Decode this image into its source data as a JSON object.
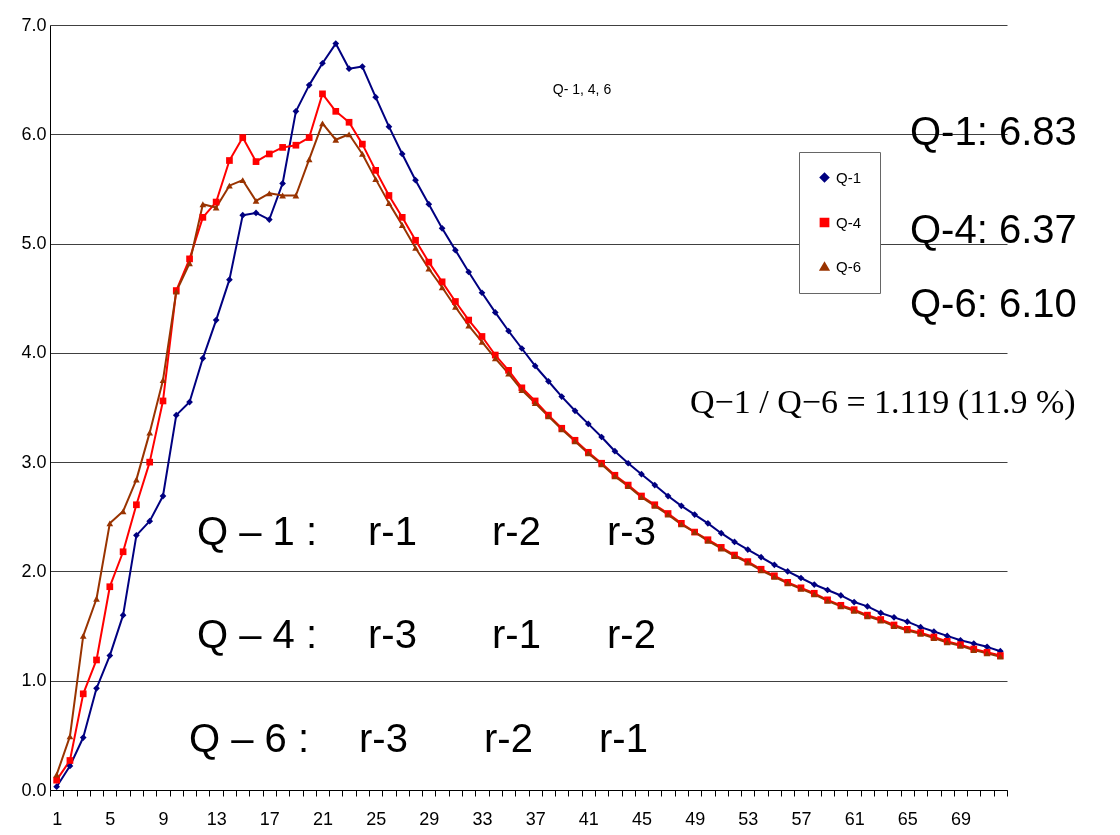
{
  "chart_data": {
    "type": "line",
    "categories": [
      "1",
      null,
      null,
      null,
      "5",
      null,
      null,
      null,
      "9",
      null,
      null,
      null,
      "13",
      null,
      null,
      null,
      "17",
      null,
      null,
      null,
      "21",
      null,
      null,
      null,
      "25",
      null,
      null,
      null,
      "29",
      null,
      null,
      null,
      "33",
      null,
      null,
      null,
      "37",
      null,
      null,
      null,
      "41",
      null,
      null,
      null,
      "45",
      null,
      null,
      null,
      "49",
      null,
      null,
      null,
      "53",
      null,
      null,
      null,
      "57",
      null,
      null,
      null,
      "61",
      null,
      null,
      null,
      "65",
      null,
      null,
      null,
      "69",
      null,
      null,
      null
    ],
    "series": [
      {
        "name": "Q-1",
        "color": "#000080",
        "marker": "diamond",
        "values": [
          0.03,
          0.22,
          0.48,
          0.93,
          1.23,
          1.6,
          2.33,
          2.46,
          2.69,
          3.43,
          3.55,
          3.95,
          4.3,
          4.67,
          5.26,
          5.28,
          5.22,
          5.55,
          6.21,
          6.45,
          6.65,
          6.83,
          6.6,
          6.62,
          6.34,
          6.07,
          5.82,
          5.58,
          5.36,
          5.14,
          4.94,
          4.74,
          4.55,
          4.37,
          4.2,
          4.04,
          3.88,
          3.74,
          3.6,
          3.47,
          3.35,
          3.23,
          3.1,
          2.99,
          2.89,
          2.79,
          2.69,
          2.6,
          2.52,
          2.44,
          2.35,
          2.27,
          2.2,
          2.13,
          2.06,
          2.0,
          1.94,
          1.88,
          1.83,
          1.78,
          1.72,
          1.68,
          1.62,
          1.58,
          1.54,
          1.49,
          1.45,
          1.41,
          1.37,
          1.34,
          1.31,
          1.27
        ]
      },
      {
        "name": "Q-4",
        "color": "#ff0000",
        "marker": "square",
        "values": [
          0.09,
          0.27,
          0.88,
          1.19,
          1.86,
          2.18,
          2.61,
          3.0,
          3.56,
          4.57,
          4.86,
          5.24,
          5.38,
          5.76,
          5.97,
          5.75,
          5.82,
          5.88,
          5.9,
          5.97,
          6.37,
          6.21,
          6.11,
          5.91,
          5.67,
          5.44,
          5.24,
          5.03,
          4.83,
          4.65,
          4.47,
          4.3,
          4.15,
          3.98,
          3.84,
          3.68,
          3.56,
          3.43,
          3.31,
          3.2,
          3.09,
          2.99,
          2.88,
          2.79,
          2.69,
          2.61,
          2.53,
          2.44,
          2.36,
          2.29,
          2.22,
          2.15,
          2.09,
          2.02,
          1.96,
          1.9,
          1.85,
          1.8,
          1.74,
          1.69,
          1.65,
          1.6,
          1.56,
          1.51,
          1.47,
          1.44,
          1.4,
          1.36,
          1.33,
          1.29,
          1.26,
          1.23
        ]
      },
      {
        "name": "Q-6",
        "color": "#993300",
        "marker": "triangle",
        "values": [
          0.14,
          0.49,
          1.41,
          1.75,
          2.44,
          2.55,
          2.84,
          3.27,
          3.75,
          4.56,
          4.82,
          5.36,
          5.33,
          5.53,
          5.58,
          5.39,
          5.46,
          5.44,
          5.44,
          5.77,
          6.1,
          5.95,
          6.0,
          5.82,
          5.59,
          5.37,
          5.17,
          4.96,
          4.77,
          4.6,
          4.42,
          4.25,
          4.1,
          3.95,
          3.81,
          3.66,
          3.54,
          3.42,
          3.3,
          3.19,
          3.08,
          2.98,
          2.87,
          2.78,
          2.68,
          2.6,
          2.52,
          2.43,
          2.36,
          2.28,
          2.21,
          2.14,
          2.08,
          2.01,
          1.95,
          1.89,
          1.84,
          1.79,
          1.73,
          1.68,
          1.64,
          1.59,
          1.55,
          1.5,
          1.46,
          1.43,
          1.39,
          1.35,
          1.32,
          1.28,
          1.25,
          1.22
        ]
      }
    ],
    "ylim": [
      0,
      7
    ],
    "yticks": [
      {
        "value": 0,
        "label": "0.0"
      },
      {
        "value": 1,
        "label": "1.0"
      },
      {
        "value": 2,
        "label": "2.0"
      },
      {
        "value": 3,
        "label": "3.0"
      },
      {
        "value": 4,
        "label": "4.0"
      },
      {
        "value": 5,
        "label": "5.0"
      },
      {
        "value": 6,
        "label": "6.0"
      },
      {
        "value": 7,
        "label": "7.0"
      }
    ],
    "grid": "y",
    "legend": "top right",
    "annotations": [
      "Q- 1, 4, 6",
      "Q-1: 6.83",
      "Q-4: 6.37",
      "Q-6: 6.10",
      "Q−1 / Q−6 = 1.119 (11.9 %)",
      "Q – 1 :",
      "r-1",
      "r-2",
      "r-3",
      "Q – 4 :",
      "r-3",
      "r-1",
      "r-2",
      "Q – 6 :",
      "r-3",
      "r-2",
      "r-1"
    ]
  }
}
